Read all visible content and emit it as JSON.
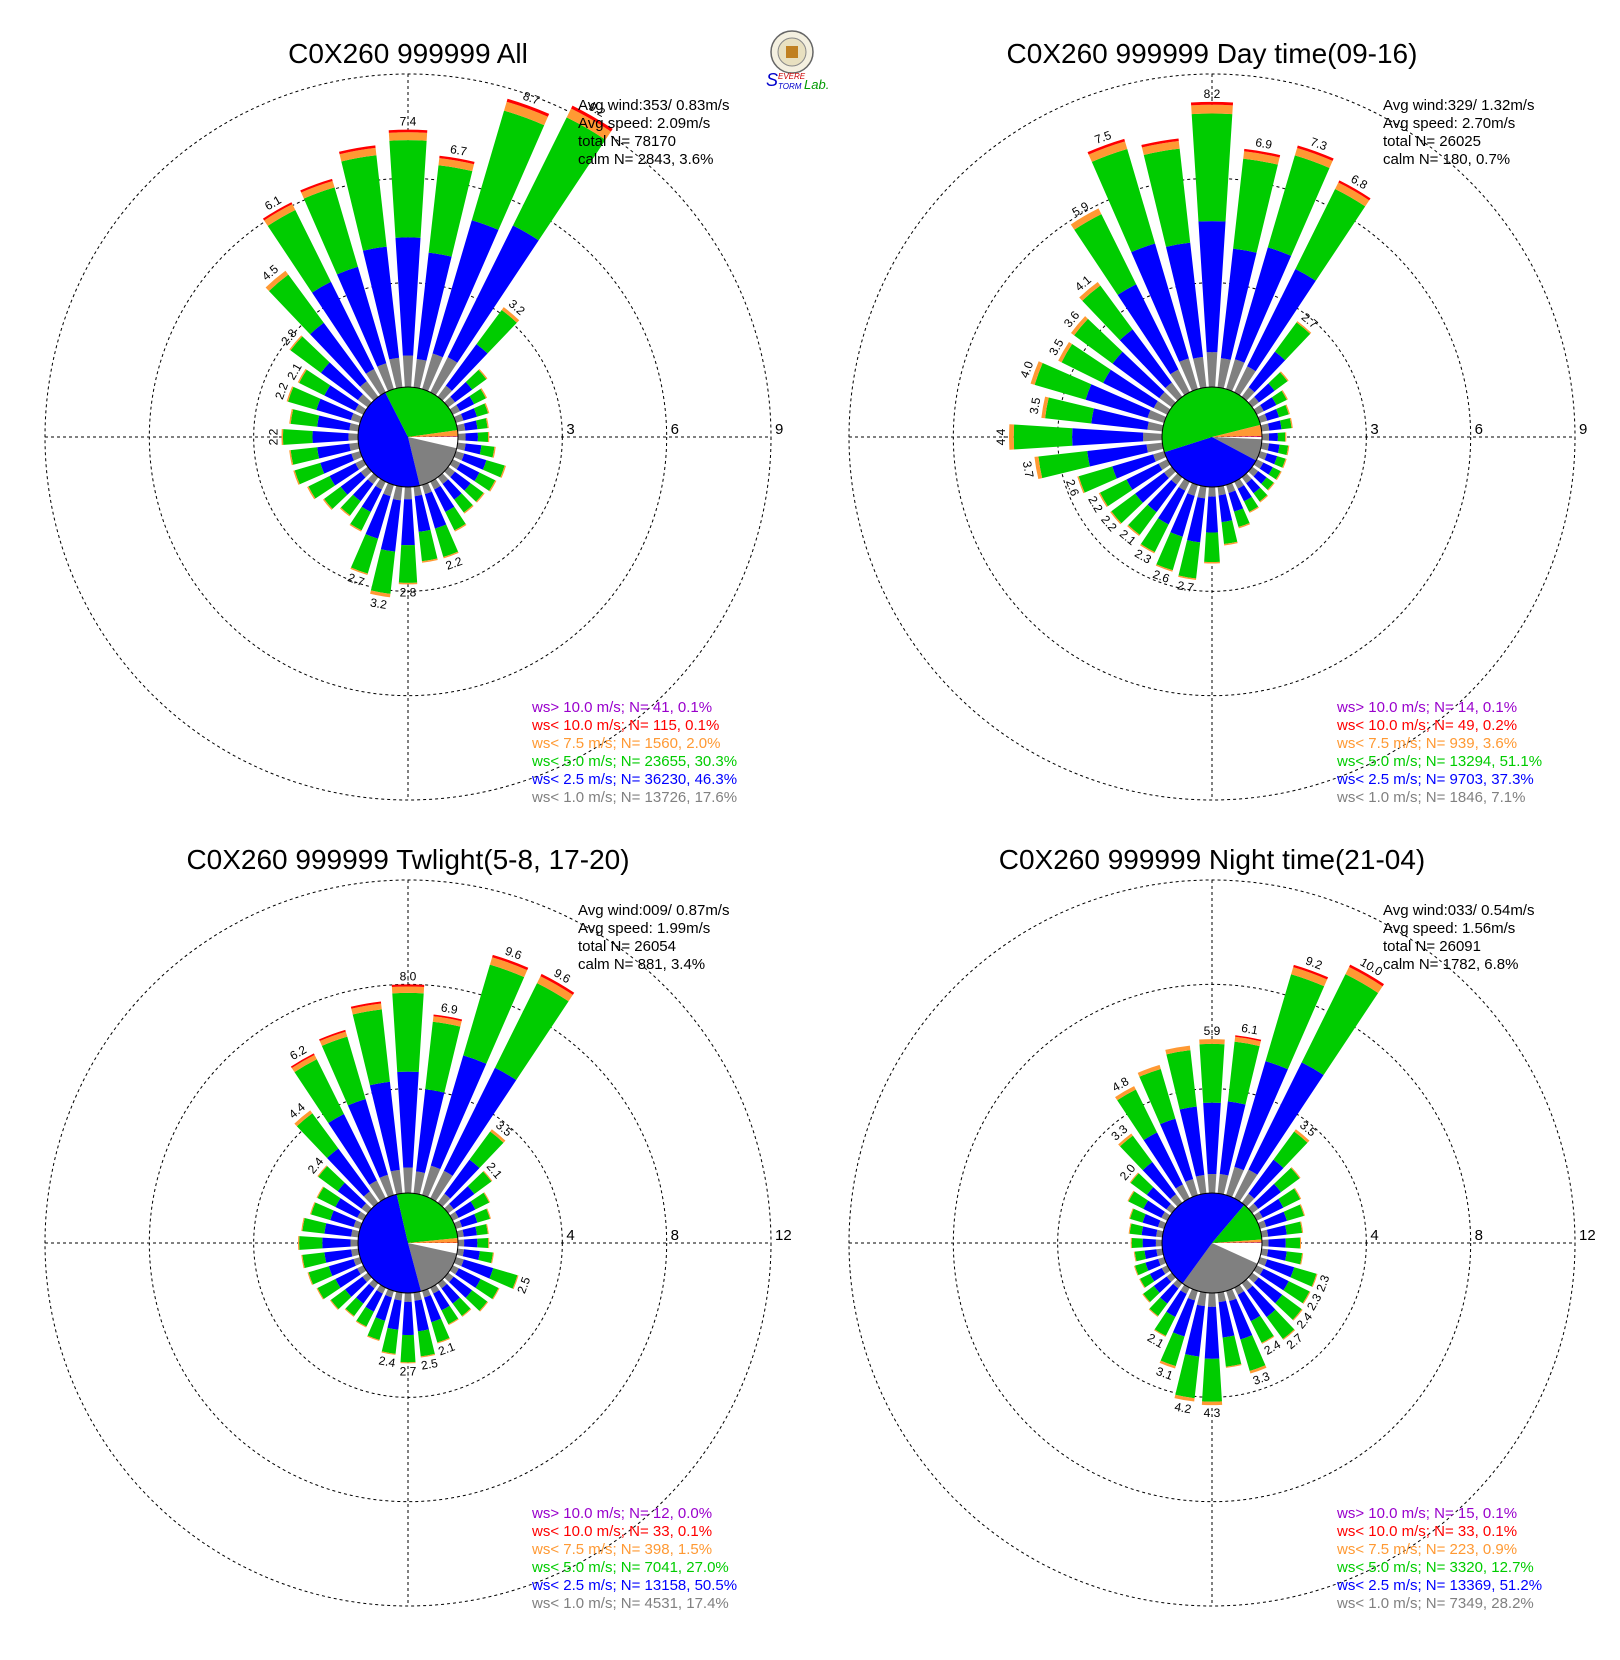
{
  "logo": {
    "text_a": "S",
    "text_b": "EVERE",
    "text_c": "TORM",
    "text_d": "Lab."
  },
  "colors": {
    "calm": "#ffffff",
    "ws_lt1": "#808080",
    "ws_lt2_5": "#0000ff",
    "ws_lt5": "#00cc00",
    "ws_lt7_5": "#ff9933",
    "ws_lt10": "#ff0000",
    "ws_gt10": "#9900cc"
  },
  "chart_data": [
    {
      "type": "windrose",
      "title": "C0X260 999999 All",
      "stats": {
        "avg_wind": "Avg wind:353/ 0.83m/s",
        "avg_speed": "Avg speed: 2.09m/s",
        "total": "total N=       78170",
        "calm": "calm N=    2843,   3.6%"
      },
      "rings": [
        "3",
        "6",
        "9"
      ],
      "rmax": 9,
      "pie": {
        "calm": 3.6,
        "ws_lt1": 17.6,
        "ws_lt2_5": 46.3,
        "ws_lt5": 30.3,
        "ws_lt7_5": 2.0,
        "ws_lt10": 0.1,
        "ws_gt10": 0.1
      },
      "bars": [
        {
          "dir": 0,
          "total": 7.4,
          "label": "7.4"
        },
        {
          "dir": 10,
          "total": 6.7,
          "label": "6.7"
        },
        {
          "dir": 20,
          "total": 8.7,
          "label": "8.7"
        },
        {
          "dir": 30,
          "total": 9.2,
          "label": "9.2"
        },
        {
          "dir": 40,
          "total": 3.2,
          "label": "3.2"
        },
        {
          "dir": 50,
          "total": 1.4
        },
        {
          "dir": 60,
          "total": 1.1
        },
        {
          "dir": 70,
          "total": 1.0
        },
        {
          "dir": 80,
          "total": 0.9
        },
        {
          "dir": 90,
          "total": 0.9
        },
        {
          "dir": 100,
          "total": 1.1
        },
        {
          "dir": 110,
          "total": 1.5
        },
        {
          "dir": 120,
          "total": 1.4
        },
        {
          "dir": 130,
          "total": 1.3
        },
        {
          "dir": 140,
          "total": 1.3
        },
        {
          "dir": 150,
          "total": 1.6
        },
        {
          "dir": 160,
          "total": 2.2,
          "label": "2.2"
        },
        {
          "dir": 170,
          "total": 2.2
        },
        {
          "dir": 180,
          "total": 2.8,
          "label": "2.8"
        },
        {
          "dir": 190,
          "total": 3.2,
          "label": "3.2"
        },
        {
          "dir": 200,
          "total": 2.7,
          "label": "2.7"
        },
        {
          "dir": 210,
          "total": 1.6
        },
        {
          "dir": 220,
          "total": 1.4
        },
        {
          "dir": 230,
          "total": 1.6
        },
        {
          "dir": 240,
          "total": 1.8
        },
        {
          "dir": 250,
          "total": 2.0
        },
        {
          "dir": 260,
          "total": 2.0
        },
        {
          "dir": 270,
          "total": 2.2,
          "label": "2.2"
        },
        {
          "dir": 280,
          "total": 2.0
        },
        {
          "dir": 290,
          "total": 2.2,
          "label": "2.2"
        },
        {
          "dir": 300,
          "total": 2.1,
          "label": "2.1"
        },
        {
          "dir": 310,
          "total": 2.8,
          "label": "2.8"
        },
        {
          "dir": 320,
          "total": 4.5,
          "label": "4.5"
        },
        {
          "dir": 330,
          "total": 6.1,
          "label": "6.1"
        },
        {
          "dir": 340,
          "total": 6.3
        },
        {
          "dir": 350,
          "total": 7.0
        }
      ],
      "legend": [
        {
          "key": "ws_gt10",
          "text": "ws> 10.0 m/s; N=    41,  0.1%"
        },
        {
          "key": "ws_lt10",
          "text": "ws< 10.0 m/s; N=   115,  0.1%"
        },
        {
          "key": "ws_lt7_5",
          "text": "ws<  7.5 m/s; N=  1560,  2.0%"
        },
        {
          "key": "ws_lt5",
          "text": "ws<  5.0 m/s; N= 23655, 30.3%"
        },
        {
          "key": "ws_lt2_5",
          "text": "ws<  2.5 m/s; N= 36230, 46.3%"
        },
        {
          "key": "ws_lt1",
          "text": "ws<  1.0 m/s; N= 13726, 17.6%"
        }
      ]
    },
    {
      "type": "windrose",
      "title": "C0X260 999999 Day time(09-16)",
      "stats": {
        "avg_wind": "Avg wind:329/ 1.32m/s",
        "avg_speed": "Avg speed: 2.70m/s",
        "total": "total N=       26025",
        "calm": "calm N=     180,   0.7%"
      },
      "rings": [
        "3",
        "6",
        "9"
      ],
      "rmax": 9,
      "pie": {
        "calm": 0.7,
        "ws_lt1": 7.1,
        "ws_lt2_5": 37.3,
        "ws_lt5": 51.1,
        "ws_lt7_5": 3.6,
        "ws_lt10": 0.2,
        "ws_gt10": 0.1
      },
      "bars": [
        {
          "dir": 0,
          "total": 8.2,
          "label": "8.2"
        },
        {
          "dir": 10,
          "total": 6.9,
          "label": "6.9"
        },
        {
          "dir": 20,
          "total": 7.3,
          "label": "7.3"
        },
        {
          "dir": 30,
          "total": 6.8,
          "label": "6.8"
        },
        {
          "dir": 40,
          "total": 2.7,
          "label": "2.7"
        },
        {
          "dir": 50,
          "total": 1.3
        },
        {
          "dir": 60,
          "total": 1.0
        },
        {
          "dir": 70,
          "total": 0.9
        },
        {
          "dir": 80,
          "total": 0.9
        },
        {
          "dir": 90,
          "total": 0.7
        },
        {
          "dir": 100,
          "total": 0.8
        },
        {
          "dir": 110,
          "total": 0.8
        },
        {
          "dir": 120,
          "total": 0.8
        },
        {
          "dir": 130,
          "total": 0.8
        },
        {
          "dir": 140,
          "total": 0.9
        },
        {
          "dir": 150,
          "total": 1.0
        },
        {
          "dir": 160,
          "total": 1.3
        },
        {
          "dir": 170,
          "total": 1.7
        },
        {
          "dir": 180,
          "total": 2.2
        },
        {
          "dir": 190,
          "total": 2.7,
          "label": "2.7"
        },
        {
          "dir": 200,
          "total": 2.6,
          "label": "2.6"
        },
        {
          "dir": 210,
          "total": 2.3,
          "label": "2.3"
        },
        {
          "dir": 220,
          "total": 2.1,
          "label": "2.1"
        },
        {
          "dir": 230,
          "total": 2.2,
          "label": "2.2"
        },
        {
          "dir": 240,
          "total": 2.2,
          "label": "2.2"
        },
        {
          "dir": 250,
          "total": 2.6,
          "label": "2.6"
        },
        {
          "dir": 260,
          "total": 3.7,
          "label": "3.7"
        },
        {
          "dir": 270,
          "total": 4.4,
          "label": "4.4"
        },
        {
          "dir": 280,
          "total": 3.5,
          "label": "3.5"
        },
        {
          "dir": 290,
          "total": 4.0,
          "label": "4.0"
        },
        {
          "dir": 300,
          "total": 3.5,
          "label": "3.5"
        },
        {
          "dir": 310,
          "total": 3.6,
          "label": "3.6"
        },
        {
          "dir": 320,
          "total": 4.1,
          "label": "4.1"
        },
        {
          "dir": 330,
          "total": 5.9,
          "label": "5.9"
        },
        {
          "dir": 340,
          "total": 7.5,
          "label": "7.5"
        },
        {
          "dir": 350,
          "total": 7.2
        }
      ],
      "legend": [
        {
          "key": "ws_gt10",
          "text": "ws> 10.0 m/s; N=    14,  0.1%"
        },
        {
          "key": "ws_lt10",
          "text": "ws< 10.0 m/s; N=    49,  0.2%"
        },
        {
          "key": "ws_lt7_5",
          "text": "ws<  7.5 m/s; N=   939,  3.6%"
        },
        {
          "key": "ws_lt5",
          "text": "ws<  5.0 m/s; N= 13294, 51.1%"
        },
        {
          "key": "ws_lt2_5",
          "text": "ws<  2.5 m/s; N=  9703, 37.3%"
        },
        {
          "key": "ws_lt1",
          "text": "ws<  1.0 m/s; N=  1846,  7.1%"
        }
      ]
    },
    {
      "type": "windrose",
      "title": "C0X260 999999 Twlight(5-8, 17-20)",
      "stats": {
        "avg_wind": "Avg wind:009/ 0.87m/s",
        "avg_speed": "Avg speed: 1.99m/s",
        "total": "total N=       26054",
        "calm": "calm N=     881,   3.4%"
      },
      "rings": [
        "4",
        "8",
        "12"
      ],
      "rmax": 12,
      "pie": {
        "calm": 3.4,
        "ws_lt1": 17.4,
        "ws_lt2_5": 50.5,
        "ws_lt5": 27.0,
        "ws_lt7_5": 1.5,
        "ws_lt10": 0.1,
        "ws_gt10": 0.0
      },
      "bars": [
        {
          "dir": 0,
          "total": 8.0,
          "label": "8.0"
        },
        {
          "dir": 10,
          "total": 6.9,
          "label": "6.9"
        },
        {
          "dir": 20,
          "total": 9.6,
          "label": "9.6"
        },
        {
          "dir": 30,
          "total": 9.6,
          "label": "9.6"
        },
        {
          "dir": 40,
          "total": 3.5,
          "label": "3.5"
        },
        {
          "dir": 50,
          "total": 2.1,
          "label": "2.1"
        },
        {
          "dir": 60,
          "total": 1.6
        },
        {
          "dir": 70,
          "total": 1.4
        },
        {
          "dir": 80,
          "total": 1.2
        },
        {
          "dir": 90,
          "total": 1.2
        },
        {
          "dir": 100,
          "total": 1.4
        },
        {
          "dir": 110,
          "total": 2.5,
          "label": "2.5"
        },
        {
          "dir": 120,
          "total": 2.0
        },
        {
          "dir": 130,
          "total": 1.9
        },
        {
          "dir": 140,
          "total": 1.6
        },
        {
          "dir": 150,
          "total": 1.6
        },
        {
          "dir": 160,
          "total": 2.1,
          "label": "2.1"
        },
        {
          "dir": 170,
          "total": 2.5,
          "label": "2.5"
        },
        {
          "dir": 180,
          "total": 2.7,
          "label": "2.7"
        },
        {
          "dir": 190,
          "total": 2.4,
          "label": "2.4"
        },
        {
          "dir": 200,
          "total": 2.0
        },
        {
          "dir": 210,
          "total": 1.7
        },
        {
          "dir": 220,
          "total": 1.6
        },
        {
          "dir": 230,
          "total": 1.8
        },
        {
          "dir": 240,
          "total": 2.0
        },
        {
          "dir": 250,
          "total": 2.1
        },
        {
          "dir": 260,
          "total": 2.2
        },
        {
          "dir": 270,
          "total": 2.3
        },
        {
          "dir": 280,
          "total": 2.2
        },
        {
          "dir": 290,
          "total": 2.0
        },
        {
          "dir": 300,
          "total": 2.0
        },
        {
          "dir": 310,
          "total": 2.4,
          "label": "2.4"
        },
        {
          "dir": 320,
          "total": 4.4,
          "label": "4.4"
        },
        {
          "dir": 330,
          "total": 6.2,
          "label": "6.2"
        },
        {
          "dir": 340,
          "total": 6.6
        },
        {
          "dir": 350,
          "total": 7.4
        }
      ],
      "legend": [
        {
          "key": "ws_gt10",
          "text": "ws> 10.0 m/s; N=    12,  0.0%"
        },
        {
          "key": "ws_lt10",
          "text": "ws< 10.0 m/s; N=    33,  0.1%"
        },
        {
          "key": "ws_lt7_5",
          "text": "ws<  7.5 m/s; N=   398,  1.5%"
        },
        {
          "key": "ws_lt5",
          "text": "ws<  5.0 m/s; N=  7041, 27.0%"
        },
        {
          "key": "ws_lt2_5",
          "text": "ws<  2.5 m/s; N= 13158, 50.5%"
        },
        {
          "key": "ws_lt1",
          "text": "ws<  1.0 m/s; N=  4531, 17.4%"
        }
      ]
    },
    {
      "type": "windrose",
      "title": "C0X260 999999 Night time(21-04)",
      "stats": {
        "avg_wind": "Avg wind:033/ 0.54m/s",
        "avg_speed": "Avg speed: 1.56m/s",
        "total": "total N=       26091",
        "calm": "calm N=    1782,   6.8%"
      },
      "rings": [
        "4",
        "8",
        "12"
      ],
      "rmax": 12,
      "pie": {
        "calm": 6.8,
        "ws_lt1": 28.2,
        "ws_lt2_5": 51.2,
        "ws_lt5": 12.7,
        "ws_lt7_5": 0.9,
        "ws_lt10": 0.1,
        "ws_gt10": 0.1
      },
      "bars": [
        {
          "dir": 0,
          "total": 5.9,
          "label": "5.9"
        },
        {
          "dir": 10,
          "total": 6.1,
          "label": "6.1"
        },
        {
          "dir": 20,
          "total": 9.2,
          "label": "9.2"
        },
        {
          "dir": 30,
          "total": 10.0,
          "label": "10.0"
        },
        {
          "dir": 40,
          "total": 3.5,
          "label": "3.5"
        },
        {
          "dir": 50,
          "total": 2.3
        },
        {
          "dir": 60,
          "total": 1.9
        },
        {
          "dir": 70,
          "total": 1.8
        },
        {
          "dir": 80,
          "total": 1.6
        },
        {
          "dir": 90,
          "total": 1.5
        },
        {
          "dir": 100,
          "total": 1.6
        },
        {
          "dir": 110,
          "total": 2.3,
          "label": "2.3"
        },
        {
          "dir": 120,
          "total": 2.3,
          "label": "2.3"
        },
        {
          "dir": 130,
          "total": 2.4,
          "label": "2.4"
        },
        {
          "dir": 140,
          "total": 2.7,
          "label": "2.7"
        },
        {
          "dir": 150,
          "total": 2.4,
          "label": "2.4"
        },
        {
          "dir": 160,
          "total": 3.3,
          "label": "3.3"
        },
        {
          "dir": 170,
          "total": 2.9
        },
        {
          "dir": 180,
          "total": 4.3,
          "label": "4.3"
        },
        {
          "dir": 190,
          "total": 4.2,
          "label": "4.2"
        },
        {
          "dir": 200,
          "total": 3.1,
          "label": "3.1"
        },
        {
          "dir": 210,
          "total": 2.1,
          "label": "2.1"
        },
        {
          "dir": 220,
          "total": 1.6
        },
        {
          "dir": 230,
          "total": 1.4
        },
        {
          "dir": 240,
          "total": 1.2
        },
        {
          "dir": 250,
          "total": 1.2
        },
        {
          "dir": 260,
          "total": 1.1
        },
        {
          "dir": 270,
          "total": 1.2
        },
        {
          "dir": 280,
          "total": 1.3
        },
        {
          "dir": 290,
          "total": 1.4
        },
        {
          "dir": 300,
          "total": 1.7
        },
        {
          "dir": 310,
          "total": 2.0,
          "label": "2.0"
        },
        {
          "dir": 320,
          "total": 3.3,
          "label": "3.3"
        },
        {
          "dir": 330,
          "total": 4.8,
          "label": "4.8"
        },
        {
          "dir": 340,
          "total": 5.2
        },
        {
          "dir": 350,
          "total": 5.7
        }
      ],
      "legend": [
        {
          "key": "ws_gt10",
          "text": "ws> 10.0 m/s; N=    15,  0.1%"
        },
        {
          "key": "ws_lt10",
          "text": "ws< 10.0 m/s; N=    33,  0.1%"
        },
        {
          "key": "ws_lt7_5",
          "text": "ws<  7.5 m/s; N=   223,  0.9%"
        },
        {
          "key": "ws_lt5",
          "text": "ws<  5.0 m/s; N=  3320, 12.7%"
        },
        {
          "key": "ws_lt2_5",
          "text": "ws<  2.5 m/s; N= 13369, 51.2%"
        },
        {
          "key": "ws_lt1",
          "text": "ws<  1.0 m/s; N=  7349, 28.2%"
        }
      ]
    }
  ]
}
